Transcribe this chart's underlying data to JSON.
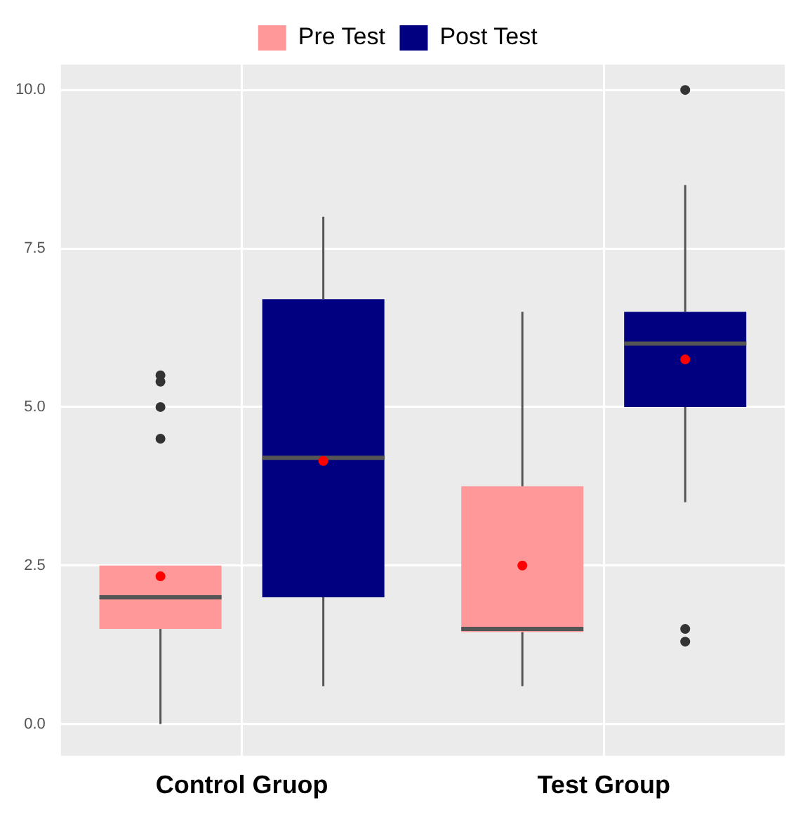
{
  "chart_data": {
    "type": "box",
    "categories": [
      "Control Gruop",
      "Test Group"
    ],
    "series": [
      {
        "name": "Pre Test",
        "color": "#ff9999",
        "boxes": [
          {
            "low": 0,
            "q1": 1.5,
            "median": 2.0,
            "q3": 2.5,
            "high": 2.5,
            "mean": 2.33,
            "outliers": [
              4.5,
              5.0,
              5.4,
              5.5
            ]
          },
          {
            "low": 0.6,
            "q1": 1.45,
            "median": 1.5,
            "q3": 3.75,
            "high": 6.5,
            "mean": 2.5
          }
        ]
      },
      {
        "name": "Post Test",
        "color": "#000080",
        "boxes": [
          {
            "low": 0.6,
            "q1": 2.0,
            "median": 4.2,
            "q3": 6.7,
            "high": 8.0,
            "mean": 4.15
          },
          {
            "low": 3.5,
            "q1": 5.0,
            "median": 6.0,
            "q3": 6.5,
            "high": 8.5,
            "mean": 5.75,
            "outliers": [
              10.0,
              1.5,
              1.3
            ]
          }
        ]
      }
    ],
    "ylim": [
      -0.5,
      10.4
    ],
    "yticks": [
      {
        "value": 0,
        "label": "0.0"
      },
      {
        "value": 2.5,
        "label": "2.5"
      },
      {
        "value": 5,
        "label": "5.0"
      },
      {
        "value": 7.5,
        "label": "7.5"
      },
      {
        "value": 10,
        "label": "10.0"
      }
    ],
    "grid": true,
    "legend": "top"
  }
}
